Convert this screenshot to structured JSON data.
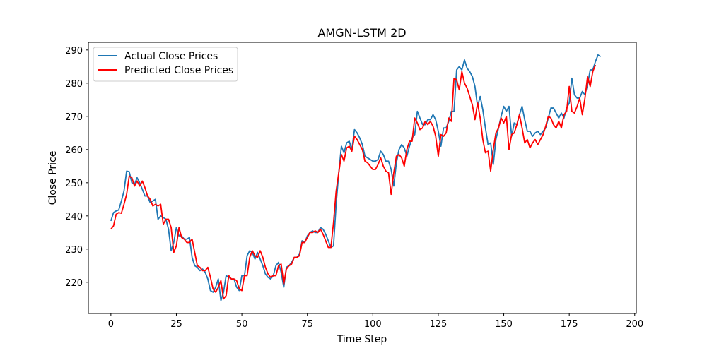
{
  "chart_data": {
    "type": "line",
    "title": "AMGN-LSTM 2D",
    "xlabel": "Time Step",
    "ylabel": "Close Price",
    "xlim": [
      -8.6,
      200.6
    ],
    "ylim": [
      210.6,
      292.3
    ],
    "xticks": [
      0,
      25,
      50,
      75,
      100,
      125,
      150,
      175,
      200
    ],
    "yticks": [
      220,
      230,
      240,
      250,
      260,
      270,
      280,
      290
    ],
    "grid": false,
    "legend": "top-left",
    "series": [
      {
        "name": "Actual Close Prices",
        "color": "#1f77b4",
        "values": [
          238.5,
          241.0,
          241.5,
          241.8,
          244.5,
          247.5,
          253.5,
          253.3,
          250.0,
          249.5,
          251.5,
          250.0,
          248.0,
          246.0,
          246.0,
          244.0,
          244.5,
          245.0,
          239.0,
          240.0,
          239.5,
          239.0,
          236.0,
          229.5,
          232.0,
          236.5,
          234.0,
          234.0,
          233.0,
          233.0,
          233.5,
          227.5,
          225.0,
          224.5,
          223.5,
          224.0,
          223.0,
          221.0,
          217.5,
          217.0,
          218.5,
          221.0,
          214.5,
          217.0,
          222.0,
          221.5,
          221.0,
          221.0,
          218.5,
          217.5,
          222.0,
          222.0,
          228.0,
          229.5,
          229.0,
          227.0,
          229.0,
          227.0,
          225.0,
          222.5,
          221.5,
          221.0,
          222.0,
          225.0,
          226.0,
          223.0,
          218.5,
          224.5,
          225.0,
          226.0,
          227.5,
          227.5,
          228.5,
          232.5,
          232.0,
          234.0,
          235.0,
          235.5,
          235.0,
          235.0,
          236.5,
          236.0,
          234.5,
          232.5,
          230.5,
          231.0,
          243.5,
          253.0,
          261.0,
          259.0,
          262.0,
          262.5,
          260.0,
          266.0,
          265.0,
          263.5,
          261.5,
          258.0,
          257.5,
          257.0,
          256.5,
          256.5,
          257.0,
          259.5,
          258.5,
          256.5,
          256.5,
          254.0,
          249.0,
          256.0,
          260.0,
          261.5,
          260.5,
          258.0,
          261.0,
          263.5,
          264.5,
          271.5,
          269.5,
          267.5,
          267.5,
          269.0,
          269.0,
          270.5,
          269.0,
          265.5,
          261.0,
          266.5,
          266.5,
          268.5,
          271.5,
          271.5,
          284.0,
          285.0,
          284.0,
          287.0,
          284.5,
          283.5,
          282.0,
          279.0,
          273.0,
          276.0,
          272.0,
          266.5,
          261.5,
          262.0,
          255.5,
          263.0,
          266.5,
          270.0,
          273.0,
          271.5,
          273.0,
          264.0,
          268.0,
          267.5,
          270.5,
          273.0,
          269.0,
          265.5,
          265.5,
          264.0,
          265.0,
          265.5,
          264.5,
          265.5,
          266.5,
          269.5,
          272.5,
          272.5,
          271.0,
          269.5,
          271.0,
          269.5,
          272.5,
          274.0,
          281.5,
          276.5,
          275.5,
          275.5,
          277.5,
          276.5,
          279.5,
          284.0,
          284.0,
          286.5,
          288.5,
          288.0
        ]
      },
      {
        "name": "Predicted Close Prices",
        "color": "#ff0000",
        "values": [
          236.0,
          237.0,
          240.5,
          241.0,
          240.8,
          243.5,
          246.5,
          252.0,
          251.5,
          249.0,
          250.5,
          249.0,
          250.5,
          248.5,
          246.0,
          245.0,
          243.0,
          243.5,
          243.0,
          243.5,
          237.5,
          239.0,
          239.0,
          236.5,
          229.0,
          231.0,
          236.5,
          233.5,
          233.0,
          232.0,
          232.0,
          233.0,
          229.0,
          225.0,
          224.5,
          223.5,
          223.5,
          224.5,
          221.5,
          218.0,
          217.0,
          218.5,
          220.5,
          215.0,
          216.0,
          222.0,
          221.0,
          221.0,
          220.5,
          218.0,
          217.5,
          222.0,
          222.0,
          227.5,
          229.5,
          228.0,
          227.5,
          229.5,
          227.5,
          224.5,
          222.5,
          221.5,
          222.0,
          222.0,
          225.0,
          225.5,
          219.5,
          224.0,
          225.0,
          225.5,
          227.5,
          227.5,
          228.0,
          232.0,
          232.0,
          233.5,
          235.0,
          235.0,
          235.5,
          235.0,
          236.0,
          234.5,
          232.5,
          230.5,
          230.5,
          238.0,
          247.5,
          253.0,
          258.5,
          256.5,
          260.5,
          261.0,
          259.5,
          264.0,
          263.0,
          261.5,
          260.0,
          256.5,
          256.0,
          255.0,
          254.0,
          254.0,
          255.5,
          257.5,
          255.0,
          253.5,
          253.0,
          246.5,
          253.0,
          258.0,
          258.5,
          257.5,
          255.0,
          260.0,
          262.5,
          262.5,
          269.5,
          268.0,
          266.0,
          266.5,
          268.5,
          267.5,
          268.5,
          267.0,
          264.0,
          258.0,
          264.5,
          264.0,
          265.0,
          269.5,
          268.5,
          281.5,
          281.0,
          278.0,
          283.5,
          280.0,
          278.5,
          276.0,
          273.5,
          269.0,
          274.0,
          269.5,
          263.0,
          259.0,
          259.5,
          253.5,
          260.0,
          265.0,
          266.5,
          269.5,
          268.0,
          270.0,
          260.0,
          264.5,
          265.0,
          267.5,
          270.5,
          266.5,
          262.0,
          263.0,
          260.5,
          262.0,
          263.0,
          261.5,
          263.0,
          264.5,
          267.0,
          270.0,
          269.5,
          267.5,
          266.5,
          268.5,
          266.5,
          270.5,
          271.5,
          279.0,
          271.5,
          271.0,
          273.0,
          275.5,
          270.5,
          275.5,
          282.0,
          279.0,
          283.5,
          285.5
        ]
      }
    ]
  }
}
